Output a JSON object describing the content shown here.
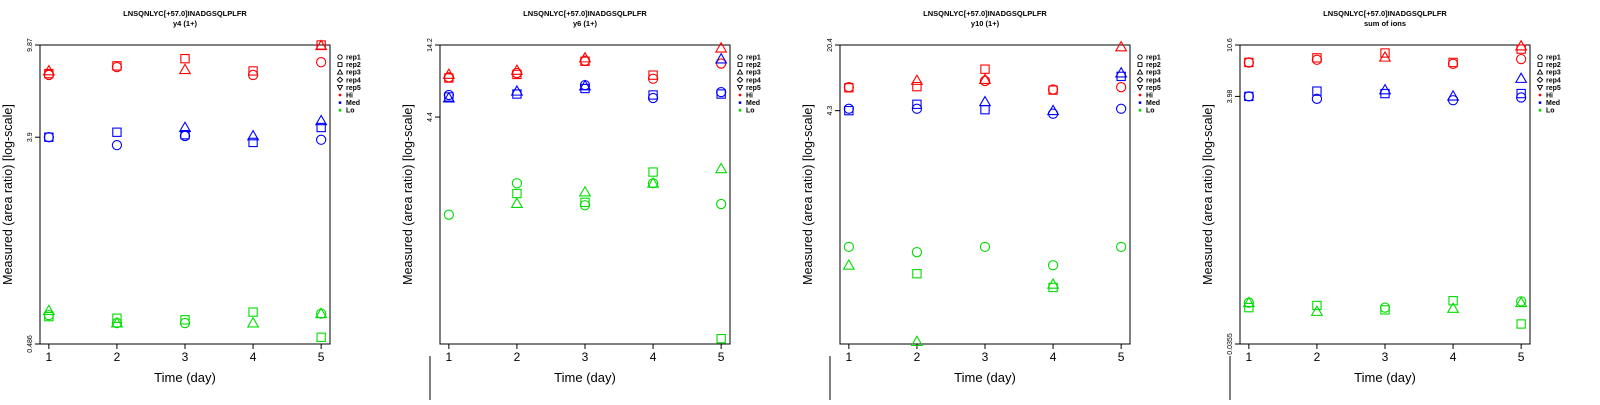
{
  "figure": {
    "title": "LNSQNLYC[+57.0]INADGSQLPLFR"
  },
  "legend": {
    "shape_entries": [
      {
        "label": "rep1",
        "shape": "circle"
      },
      {
        "label": "rep2",
        "shape": "square"
      },
      {
        "label": "rep3",
        "shape": "triangle-up"
      },
      {
        "label": "rep4",
        "shape": "diamond"
      },
      {
        "label": "rep5",
        "shape": "triangle-down"
      }
    ],
    "color_entries": [
      {
        "label": "Hi",
        "color": "#ff0000"
      },
      {
        "label": "Med",
        "color": "#0000ff"
      },
      {
        "label": "Lo",
        "color": "#00dd00"
      }
    ]
  },
  "chart_data": [
    {
      "type": "scatter",
      "title": "LNSQNLYC[+57.0]INADGSQLPLFR",
      "subtitle": "y4 (1+)",
      "xlabel": "Time (day)",
      "ylabel": "Measured (area ratio) [log-scale]",
      "x_ticks": [
        1,
        2,
        3,
        4,
        5
      ],
      "y_ticks": [
        "0.486",
        "3.9",
        "9.87"
      ],
      "y_scale": "log",
      "ylim": [
        0.486,
        9.87
      ],
      "series": [
        {
          "name": "Hi",
          "color": "#ff0000",
          "points": [
            {
              "x": 1,
              "y": 7.6,
              "m": "triangle-up"
            },
            {
              "x": 1,
              "y": 7.3,
              "m": "circle"
            },
            {
              "x": 1,
              "y": 7.4,
              "m": "square"
            },
            {
              "x": 2,
              "y": 8.0,
              "m": "square"
            },
            {
              "x": 2,
              "y": 7.9,
              "m": "circle"
            },
            {
              "x": 3,
              "y": 8.6,
              "m": "square"
            },
            {
              "x": 3,
              "y": 7.7,
              "m": "triangle-up"
            },
            {
              "x": 4,
              "y": 7.6,
              "m": "square"
            },
            {
              "x": 4,
              "y": 7.3,
              "m": "circle"
            },
            {
              "x": 5,
              "y": 9.87,
              "m": "square"
            },
            {
              "x": 5,
              "y": 9.8,
              "m": "triangle-up"
            },
            {
              "x": 5,
              "y": 8.3,
              "m": "circle"
            }
          ]
        },
        {
          "name": "Med",
          "color": "#0000ff",
          "points": [
            {
              "x": 1,
              "y": 3.9,
              "m": "circle"
            },
            {
              "x": 1,
              "y": 3.9,
              "m": "square"
            },
            {
              "x": 2,
              "y": 3.6,
              "m": "circle"
            },
            {
              "x": 2,
              "y": 4.1,
              "m": "square"
            },
            {
              "x": 3,
              "y": 4.3,
              "m": "triangle-up"
            },
            {
              "x": 3,
              "y": 3.95,
              "m": "circle"
            },
            {
              "x": 3,
              "y": 4.0,
              "m": "square"
            },
            {
              "x": 4,
              "y": 3.95,
              "m": "triangle-up"
            },
            {
              "x": 4,
              "y": 3.7,
              "m": "square"
            },
            {
              "x": 5,
              "y": 4.6,
              "m": "triangle-up"
            },
            {
              "x": 5,
              "y": 4.3,
              "m": "square"
            },
            {
              "x": 5,
              "y": 3.8,
              "m": "circle"
            }
          ]
        },
        {
          "name": "Lo",
          "color": "#00dd00",
          "points": [
            {
              "x": 1,
              "y": 0.68,
              "m": "triangle-up"
            },
            {
              "x": 1,
              "y": 0.65,
              "m": "circle"
            },
            {
              "x": 1,
              "y": 0.64,
              "m": "square"
            },
            {
              "x": 2,
              "y": 0.63,
              "m": "square"
            },
            {
              "x": 2,
              "y": 0.6,
              "m": "circle"
            },
            {
              "x": 2,
              "y": 0.6,
              "m": "triangle-up"
            },
            {
              "x": 3,
              "y": 0.62,
              "m": "square"
            },
            {
              "x": 3,
              "y": 0.6,
              "m": "circle"
            },
            {
              "x": 4,
              "y": 0.67,
              "m": "square"
            },
            {
              "x": 4,
              "y": 0.6,
              "m": "triangle-up"
            },
            {
              "x": 5,
              "y": 0.66,
              "m": "circle"
            },
            {
              "x": 5,
              "y": 0.66,
              "m": "triangle-up"
            },
            {
              "x": 5,
              "y": 0.52,
              "m": "square"
            }
          ]
        }
      ]
    },
    {
      "type": "scatter",
      "title": "LNSQNLYC[+57.0]INADGSQLPLFR",
      "subtitle": "y6 (1+)",
      "xlabel": "Time (day)",
      "ylabel": "Measured (area ratio) [log-scale]",
      "x_ticks": [
        1,
        2,
        3,
        4,
        5
      ],
      "y_ticks": [
        "4.4",
        "14.2"
      ],
      "y_scale": "log",
      "ylim": [
        0.11,
        14.2
      ],
      "series": [
        {
          "name": "Hi",
          "color": "#ff0000",
          "points": [
            {
              "x": 1,
              "y": 8.8,
              "m": "triangle-up"
            },
            {
              "x": 1,
              "y": 8.4,
              "m": "circle"
            },
            {
              "x": 1,
              "y": 8.3,
              "m": "square"
            },
            {
              "x": 2,
              "y": 9.4,
              "m": "triangle-up"
            },
            {
              "x": 2,
              "y": 9.0,
              "m": "circle"
            },
            {
              "x": 2,
              "y": 8.8,
              "m": "square"
            },
            {
              "x": 3,
              "y": 11.5,
              "m": "triangle-up"
            },
            {
              "x": 3,
              "y": 11.0,
              "m": "circle"
            },
            {
              "x": 3,
              "y": 10.9,
              "m": "square"
            },
            {
              "x": 4,
              "y": 8.7,
              "m": "square"
            },
            {
              "x": 4,
              "y": 8.2,
              "m": "circle"
            },
            {
              "x": 5,
              "y": 13.5,
              "m": "triangle-up"
            },
            {
              "x": 5,
              "y": 10.5,
              "m": "circle"
            }
          ]
        },
        {
          "name": "Med",
          "color": "#0000ff",
          "points": [
            {
              "x": 1,
              "y": 6.3,
              "m": "circle"
            },
            {
              "x": 1,
              "y": 6.0,
              "m": "triangle-up"
            },
            {
              "x": 1,
              "y": 6.1,
              "m": "square"
            },
            {
              "x": 2,
              "y": 6.7,
              "m": "triangle-up"
            },
            {
              "x": 2,
              "y": 6.4,
              "m": "square"
            },
            {
              "x": 3,
              "y": 7.3,
              "m": "triangle-up"
            },
            {
              "x": 3,
              "y": 7.0,
              "m": "square"
            },
            {
              "x": 3,
              "y": 7.4,
              "m": "circle"
            },
            {
              "x": 4,
              "y": 6.3,
              "m": "square"
            },
            {
              "x": 4,
              "y": 6.0,
              "m": "circle"
            },
            {
              "x": 5,
              "y": 11.3,
              "m": "triangle-up"
            },
            {
              "x": 5,
              "y": 6.4,
              "m": "square"
            },
            {
              "x": 5,
              "y": 6.6,
              "m": "circle"
            }
          ]
        },
        {
          "name": "Lo",
          "color": "#00dd00",
          "points": [
            {
              "x": 1,
              "y": 0.9,
              "m": "circle"
            },
            {
              "x": 2,
              "y": 1.5,
              "m": "circle"
            },
            {
              "x": 2,
              "y": 1.27,
              "m": "square"
            },
            {
              "x": 2,
              "y": 1.08,
              "m": "triangle-up"
            },
            {
              "x": 3,
              "y": 1.3,
              "m": "triangle-up"
            },
            {
              "x": 3,
              "y": 1.1,
              "m": "square"
            },
            {
              "x": 3,
              "y": 1.05,
              "m": "circle"
            },
            {
              "x": 4,
              "y": 1.8,
              "m": "square"
            },
            {
              "x": 4,
              "y": 1.5,
              "m": "circle"
            },
            {
              "x": 4,
              "y": 1.5,
              "m": "triangle-up"
            },
            {
              "x": 5,
              "y": 1.9,
              "m": "triangle-up"
            },
            {
              "x": 5,
              "y": 1.07,
              "m": "circle"
            },
            {
              "x": 5,
              "y": 0.12,
              "m": "square"
            }
          ]
        }
      ]
    },
    {
      "type": "scatter",
      "title": "LNSQNLYC[+57.0]INADGSQLPLFR",
      "subtitle": "y10 (1+)",
      "xlabel": "Time (day)",
      "ylabel": "Measured (area ratio) [log-scale]",
      "x_ticks": [
        1,
        2,
        3,
        4,
        5
      ],
      "y_ticks": [
        "4.3",
        "20.4"
      ],
      "y_scale": "log",
      "ylim": [
        0.017,
        20.4
      ],
      "series": [
        {
          "name": "Hi",
          "color": "#ff0000",
          "points": [
            {
              "x": 1,
              "y": 7.5,
              "m": "circle"
            },
            {
              "x": 1,
              "y": 7.4,
              "m": "square"
            },
            {
              "x": 2,
              "y": 8.8,
              "m": "triangle-up"
            },
            {
              "x": 2,
              "y": 7.6,
              "m": "square"
            },
            {
              "x": 3,
              "y": 11.5,
              "m": "square"
            },
            {
              "x": 3,
              "y": 9.0,
              "m": "triangle-up"
            },
            {
              "x": 3,
              "y": 8.7,
              "m": "circle"
            },
            {
              "x": 4,
              "y": 7.1,
              "m": "circle"
            },
            {
              "x": 4,
              "y": 7.0,
              "m": "square"
            },
            {
              "x": 5,
              "y": 19.5,
              "m": "triangle-up"
            },
            {
              "x": 5,
              "y": 7.5,
              "m": "circle"
            }
          ]
        },
        {
          "name": "Med",
          "color": "#0000ff",
          "points": [
            {
              "x": 1,
              "y": 4.5,
              "m": "circle"
            },
            {
              "x": 1,
              "y": 4.3,
              "m": "square"
            },
            {
              "x": 2,
              "y": 5.0,
              "m": "square"
            },
            {
              "x": 2,
              "y": 4.5,
              "m": "circle"
            },
            {
              "x": 3,
              "y": 5.3,
              "m": "triangle-up"
            },
            {
              "x": 3,
              "y": 4.4,
              "m": "square"
            },
            {
              "x": 4,
              "y": 4.3,
              "m": "triangle-up"
            },
            {
              "x": 4,
              "y": 4.0,
              "m": "circle"
            },
            {
              "x": 5,
              "y": 10.5,
              "m": "triangle-up"
            },
            {
              "x": 5,
              "y": 9.7,
              "m": "square"
            },
            {
              "x": 5,
              "y": 4.5,
              "m": "circle"
            }
          ]
        },
        {
          "name": "Lo",
          "color": "#00dd00",
          "points": [
            {
              "x": 1,
              "y": 0.17,
              "m": "circle"
            },
            {
              "x": 1,
              "y": 0.11,
              "m": "triangle-up"
            },
            {
              "x": 2,
              "y": 0.15,
              "m": "circle"
            },
            {
              "x": 2,
              "y": 0.09,
              "m": "square"
            },
            {
              "x": 2,
              "y": 0.018,
              "m": "triangle-up"
            },
            {
              "x": 3,
              "y": 0.17,
              "m": "circle"
            },
            {
              "x": 4,
              "y": 0.11,
              "m": "circle"
            },
            {
              "x": 4,
              "y": 0.07,
              "m": "triangle-up"
            },
            {
              "x": 4,
              "y": 0.065,
              "m": "square"
            },
            {
              "x": 5,
              "y": 0.17,
              "m": "circle"
            }
          ]
        }
      ]
    },
    {
      "type": "scatter",
      "title": "LNSQNLYC[+57.0]INADGSQLPLFR",
      "subtitle": "sum of ions",
      "xlabel": "Time (day)",
      "ylabel": "Measured (area ratio) [log-scale]",
      "x_ticks": [
        1,
        2,
        3,
        4,
        5
      ],
      "y_ticks": [
        "0.0355",
        "3.98",
        "10.6"
      ],
      "y_scale": "log",
      "ylim": [
        0.0355,
        10.6
      ],
      "series": [
        {
          "name": "Hi",
          "color": "#ff0000",
          "points": [
            {
              "x": 1,
              "y": 7.6,
              "m": "circle"
            },
            {
              "x": 1,
              "y": 7.6,
              "m": "square"
            },
            {
              "x": 2,
              "y": 8.3,
              "m": "square"
            },
            {
              "x": 2,
              "y": 8.0,
              "m": "circle"
            },
            {
              "x": 3,
              "y": 9.1,
              "m": "square"
            },
            {
              "x": 3,
              "y": 8.4,
              "m": "triangle-up"
            },
            {
              "x": 4,
              "y": 7.6,
              "m": "square"
            },
            {
              "x": 4,
              "y": 7.4,
              "m": "circle"
            },
            {
              "x": 5,
              "y": 10.4,
              "m": "triangle-up"
            },
            {
              "x": 5,
              "y": 9.8,
              "m": "square"
            },
            {
              "x": 5,
              "y": 8.1,
              "m": "circle"
            }
          ]
        },
        {
          "name": "Med",
          "color": "#0000ff",
          "points": [
            {
              "x": 1,
              "y": 3.98,
              "m": "circle"
            },
            {
              "x": 1,
              "y": 3.98,
              "m": "square"
            },
            {
              "x": 2,
              "y": 4.4,
              "m": "square"
            },
            {
              "x": 2,
              "y": 3.8,
              "m": "circle"
            },
            {
              "x": 3,
              "y": 4.5,
              "m": "triangle-up"
            },
            {
              "x": 3,
              "y": 4.2,
              "m": "square"
            },
            {
              "x": 4,
              "y": 4.0,
              "m": "triangle-up"
            },
            {
              "x": 4,
              "y": 3.7,
              "m": "circle"
            },
            {
              "x": 5,
              "y": 5.6,
              "m": "triangle-up"
            },
            {
              "x": 5,
              "y": 4.2,
              "m": "square"
            },
            {
              "x": 5,
              "y": 3.9,
              "m": "circle"
            }
          ]
        },
        {
          "name": "Lo",
          "color": "#00dd00",
          "points": [
            {
              "x": 1,
              "y": 0.078,
              "m": "circle"
            },
            {
              "x": 1,
              "y": 0.078,
              "m": "triangle-up"
            },
            {
              "x": 1,
              "y": 0.071,
              "m": "square"
            },
            {
              "x": 2,
              "y": 0.074,
              "m": "square"
            },
            {
              "x": 2,
              "y": 0.066,
              "m": "triangle-up"
            },
            {
              "x": 3,
              "y": 0.071,
              "m": "circle"
            },
            {
              "x": 3,
              "y": 0.068,
              "m": "square"
            },
            {
              "x": 4,
              "y": 0.081,
              "m": "square"
            },
            {
              "x": 4,
              "y": 0.07,
              "m": "triangle-up"
            },
            {
              "x": 5,
              "y": 0.08,
              "m": "circle"
            },
            {
              "x": 5,
              "y": 0.078,
              "m": "triangle-up"
            },
            {
              "x": 5,
              "y": 0.052,
              "m": "square"
            }
          ]
        }
      ]
    }
  ]
}
